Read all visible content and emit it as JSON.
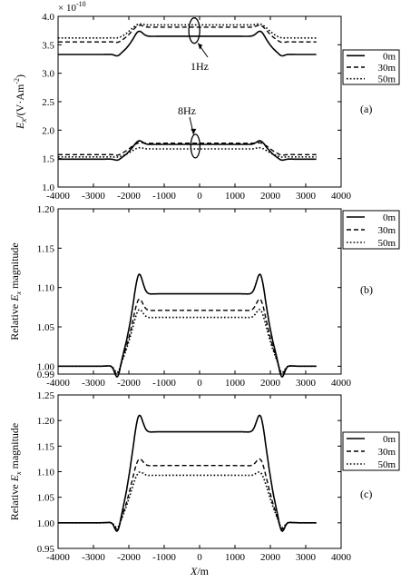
{
  "figure": {
    "panels": [
      "(a)",
      "(b)",
      "(c)"
    ],
    "xlabel_main": "X",
    "xlabel_unit": "/m"
  },
  "chart_data": [
    {
      "type": "line",
      "id": "a",
      "panel_label": "(a)",
      "ylabel_main": "E",
      "ylabel_sub": "x",
      "ylabel_unit": "/(V·Am",
      "ylabel_sup": "-2",
      "ylabel_close": ")",
      "multiplier_base": "× 10",
      "multiplier_exp": "-10",
      "xlim": [
        -4000,
        4000
      ],
      "ylim": [
        1.0,
        4.0
      ],
      "xticks": [
        -4000,
        -3000,
        -2000,
        -1000,
        0,
        1000,
        2000,
        3000,
        4000
      ],
      "yticks": [
        1.0,
        1.5,
        2.0,
        2.5,
        3.0,
        3.5,
        4.0
      ],
      "ytick_labels": [
        "1.0",
        "1.5",
        "2.0",
        "2.5",
        "3.0",
        "3.5",
        "4.0"
      ],
      "legend": [
        "0m",
        "30m",
        "50m"
      ],
      "annotations": [
        "1Hz",
        "8Hz"
      ],
      "series": [
        {
          "name": "0m",
          "group": "1Hz",
          "base": 3.33,
          "plateau": 3.65,
          "overshoot": 3.76,
          "undershoot": 3.29
        },
        {
          "name": "30m",
          "group": "1Hz",
          "base": 3.55,
          "plateau": 3.81,
          "overshoot": 3.86,
          "undershoot": 3.53
        },
        {
          "name": "50m",
          "group": "1Hz",
          "base": 3.62,
          "plateau": 3.85,
          "overshoot": 3.88,
          "undershoot": 3.61
        },
        {
          "name": "0m",
          "group": "8Hz",
          "base": 1.49,
          "plateau": 1.75,
          "overshoot": 1.83,
          "undershoot": 1.46
        },
        {
          "name": "30m",
          "group": "8Hz",
          "base": 1.57,
          "plateau": 1.77,
          "overshoot": 1.79,
          "undershoot": 1.55
        },
        {
          "name": "50m",
          "group": "8Hz",
          "base": 1.53,
          "plateau": 1.67,
          "overshoot": 1.7,
          "undershoot": 1.52
        }
      ]
    },
    {
      "type": "line",
      "id": "b",
      "panel_label": "(b)",
      "ylabel_main": "Relative ",
      "ylabel_sub": "E",
      "ylabel_subsub": "x",
      "ylabel_tail": " magnitude",
      "xlim": [
        -4000,
        4000
      ],
      "ylim": [
        0.99,
        1.2
      ],
      "xticks": [
        -4000,
        -3000,
        -2000,
        -1000,
        0,
        1000,
        2000,
        3000,
        4000
      ],
      "yticks": [
        0.99,
        1.0,
        1.05,
        1.1,
        1.15,
        1.2
      ],
      "ytick_labels": [
        "0.99",
        "1.00",
        "1.05",
        "1.10",
        "1.15",
        "1.20"
      ],
      "legend": [
        "0m",
        "30m",
        "50m"
      ],
      "series": [
        {
          "name": "0m",
          "base": 1.0,
          "plateau": 1.092,
          "overshoot": 1.123,
          "undershoot": 0.982
        },
        {
          "name": "30m",
          "base": 1.0,
          "plateau": 1.071,
          "overshoot": 1.09,
          "undershoot": 0.986
        },
        {
          "name": "50m",
          "base": 1.0,
          "plateau": 1.062,
          "overshoot": 1.076,
          "undershoot": 0.989
        }
      ]
    },
    {
      "type": "line",
      "id": "c",
      "panel_label": "(c)",
      "ylabel_main": "Relative ",
      "ylabel_sub": "E",
      "ylabel_subsub": "x",
      "ylabel_tail": " magnitude",
      "xlim": [
        -4000,
        4000
      ],
      "ylim": [
        0.95,
        1.25
      ],
      "xticks": [
        -4000,
        -3000,
        -2000,
        -1000,
        0,
        1000,
        2000,
        3000,
        4000
      ],
      "yticks": [
        0.95,
        1.0,
        1.05,
        1.1,
        1.15,
        1.2,
        1.25
      ],
      "ytick_labels": [
        "0.95",
        "1.00",
        "1.05",
        "1.10",
        "1.15",
        "1.20",
        "1.25"
      ],
      "legend": [
        "0m",
        "30m",
        "50m"
      ],
      "series": [
        {
          "name": "0m",
          "base": 1.0,
          "plateau": 1.178,
          "overshoot": 1.222,
          "undershoot": 0.975
        },
        {
          "name": "30m",
          "base": 1.0,
          "plateau": 1.112,
          "overshoot": 1.132,
          "undershoot": 0.982
        },
        {
          "name": "50m",
          "base": 1.0,
          "plateau": 1.093,
          "overshoot": 1.105,
          "undershoot": 0.986
        }
      ]
    }
  ]
}
